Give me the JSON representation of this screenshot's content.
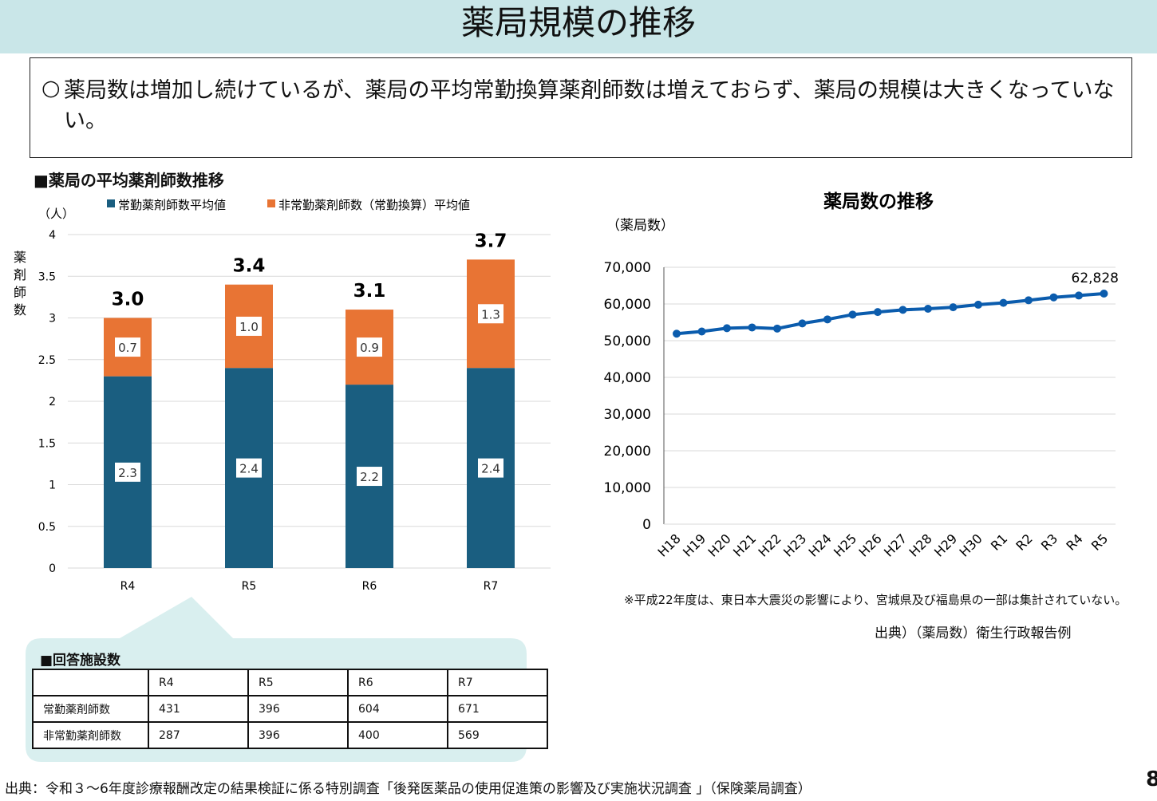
{
  "title": "薬局規模の推移",
  "summary": {
    "bullet": "○",
    "text": "薬局数は増加し続けているが、薬局の平均常勤換算薬剤師数は増えておらず、薬局の規模は大きくなっていない。"
  },
  "left_section_title": "■薬局の平均薬剤師数推移",
  "table_section_title": "■回答施設数",
  "table": {
    "headers": [
      "",
      "R4",
      "R5",
      "R6",
      "R7"
    ],
    "rows": [
      [
        "常勤薬剤師数",
        "431",
        "396",
        "604",
        "671"
      ],
      [
        "非常勤薬剤師数",
        "287",
        "396",
        "400",
        "569"
      ]
    ]
  },
  "note": "※平成22年度は、東日本大震災の影響により、宮城県及び福島県の一部は集計されていない。",
  "source_right": "出典）（薬局数）衛生行政報告例",
  "source_bottom": "出典：令和３～6年度診療報酬改定の結果検証に係る特別調査「後発医薬品の使用促進策の影響及び実施状況調査 」（保険薬局調査）",
  "page_number": "8",
  "colors": {
    "header_bg": "#c9e6e8",
    "fulltime": "#1a5e80",
    "parttime": "#e87434",
    "line": "#0b5cad",
    "callout": "#d9efef"
  },
  "chart_data": [
    {
      "type": "bar",
      "stacked": true,
      "unit_label": "（人）",
      "ylabel": "薬剤師数",
      "categories": [
        "R4",
        "R5",
        "R6",
        "R7"
      ],
      "series": [
        {
          "name": "常勤薬剤師数平均値",
          "values": [
            2.3,
            2.4,
            2.2,
            2.4
          ]
        },
        {
          "name": "非常勤薬剤師数（常勤換算）平均値",
          "values": [
            0.7,
            1.0,
            0.9,
            1.3
          ]
        }
      ],
      "totals": [
        "3.0",
        "3.4",
        "3.1",
        "3.7"
      ],
      "value_labels": [
        [
          "2.3",
          "2.4",
          "2.2",
          "2.4"
        ],
        [
          "0.7",
          "1.0",
          "0.9",
          "1.3"
        ]
      ],
      "ylim": [
        0,
        4
      ],
      "yticks": [
        "0",
        "0.5",
        "1",
        "1.5",
        "2",
        "2.5",
        "3",
        "3.5",
        "4"
      ],
      "grid": true,
      "legend": "top"
    },
    {
      "type": "line",
      "title": "薬局数の推移",
      "ylabel": "（薬局数）",
      "x": [
        "H18",
        "H19",
        "H20",
        "H21",
        "H22",
        "H23",
        "H24",
        "H25",
        "H26",
        "H27",
        "H28",
        "H29",
        "H30",
        "R1",
        "R2",
        "R3",
        "R4",
        "R5"
      ],
      "values": [
        51900,
        52500,
        53400,
        53600,
        53300,
        54700,
        55800,
        57100,
        57800,
        58400,
        58700,
        59100,
        59800,
        60300,
        61000,
        61800,
        62300,
        62828
      ],
      "last_label": "62,828",
      "ylim": [
        0,
        70000
      ],
      "yticks": [
        "0",
        "10,000",
        "20,000",
        "30,000",
        "40,000",
        "50,000",
        "60,000",
        "70,000"
      ],
      "grid": true
    }
  ]
}
